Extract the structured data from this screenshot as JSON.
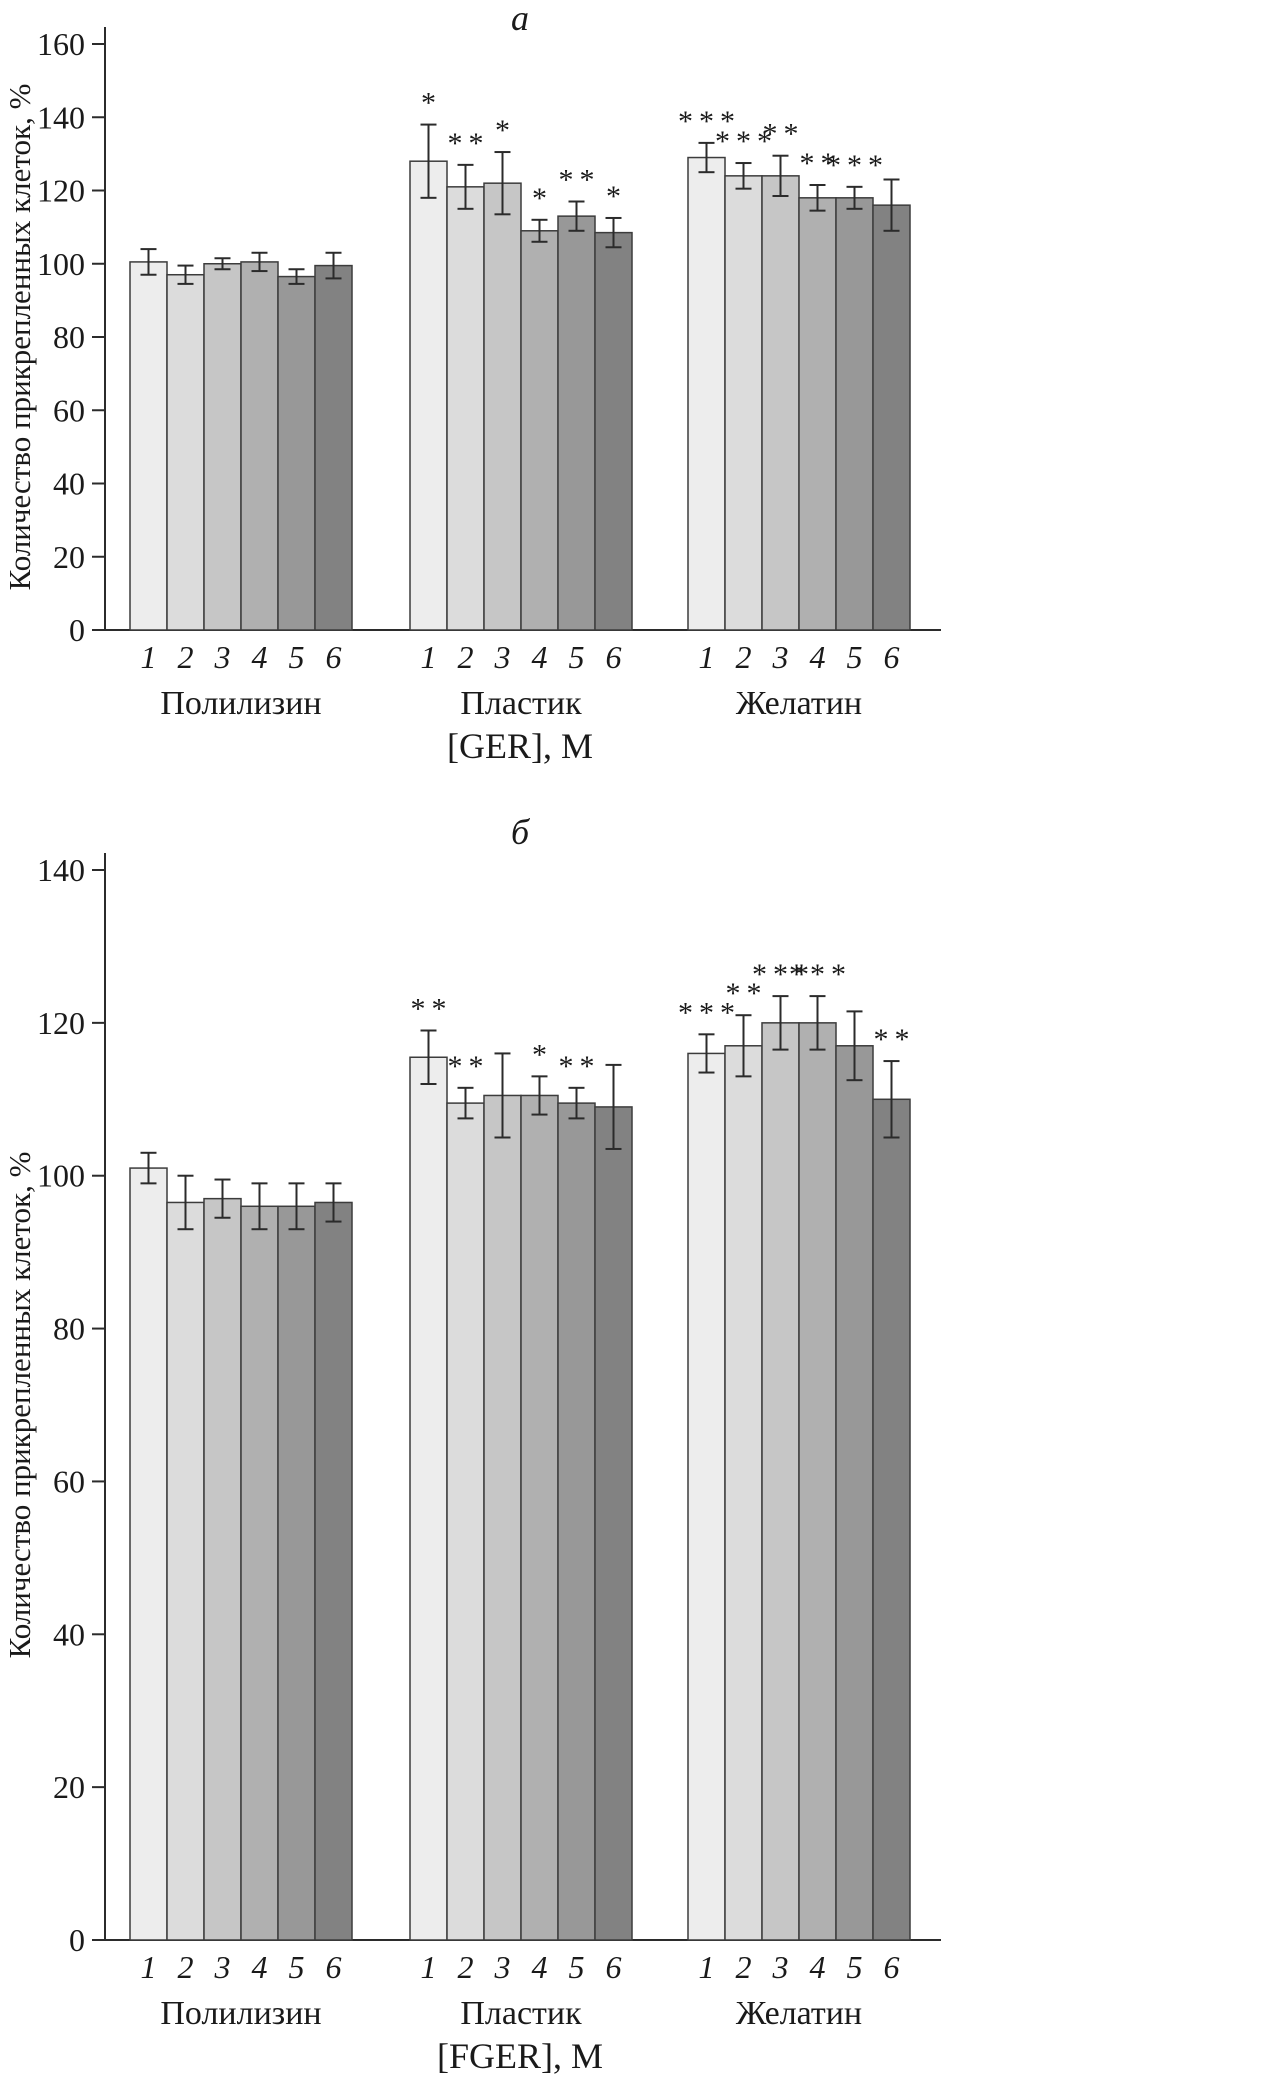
{
  "chart_data": [
    {
      "type": "bar",
      "panel": "a",
      "title": "а",
      "ylabel": "Количество прикрепленных клеток, %",
      "xlabel": "[GER], М",
      "ylim": [
        0,
        160
      ],
      "yticks": [
        0,
        20,
        40,
        60,
        80,
        100,
        120,
        140,
        160
      ],
      "bar_labels": [
        "1",
        "2",
        "3",
        "4",
        "5",
        "6"
      ],
      "bar_colors": [
        "#ededed",
        "#dcdcdc",
        "#c6c6c6",
        "#b0b0b0",
        "#989898",
        "#828282"
      ],
      "groups": [
        {
          "label": "Полилизин",
          "values": [
            100.5,
            97,
            100,
            100.5,
            96.5,
            99.5
          ],
          "errors": [
            3.5,
            2.5,
            1.5,
            2.5,
            2,
            3.5
          ],
          "stars": [
            "",
            "",
            "",
            "",
            "",
            ""
          ]
        },
        {
          "label": "Пластик",
          "values": [
            128,
            121,
            122,
            109,
            113,
            108.5
          ],
          "errors": [
            10,
            6,
            8.5,
            3,
            4,
            4
          ],
          "stars": [
            "*",
            "**",
            "*",
            "*",
            "**",
            "*"
          ]
        },
        {
          "label": "Желатин",
          "values": [
            129,
            124,
            124,
            118,
            118,
            116
          ],
          "errors": [
            4,
            3.5,
            5.5,
            3.5,
            3,
            7
          ],
          "stars": [
            "***",
            "***",
            "**",
            "**",
            "***",
            ""
          ]
        }
      ]
    },
    {
      "type": "bar",
      "panel": "b",
      "title": "б",
      "ylabel": "Количество прикрепленных клеток, %",
      "xlabel": "[FGER], М",
      "ylim": [
        0,
        140
      ],
      "yticks": [
        0,
        20,
        40,
        60,
        80,
        100,
        120,
        140
      ],
      "bar_labels": [
        "1",
        "2",
        "3",
        "4",
        "5",
        "6"
      ],
      "bar_colors": [
        "#ededed",
        "#dcdcdc",
        "#c6c6c6",
        "#b0b0b0",
        "#989898",
        "#828282"
      ],
      "groups": [
        {
          "label": "Полилизин",
          "values": [
            101,
            96.5,
            97,
            96,
            96,
            96.5
          ],
          "errors": [
            2,
            3.5,
            2.5,
            3,
            3,
            2.5
          ],
          "stars": [
            "",
            "",
            "",
            "",
            "",
            ""
          ]
        },
        {
          "label": "Пластик",
          "values": [
            115.5,
            109.5,
            110.5,
            110.5,
            109.5,
            109
          ],
          "errors": [
            3.5,
            2,
            5.5,
            2.5,
            2,
            5.5
          ],
          "stars": [
            "**",
            "**",
            "",
            "*",
            "**",
            ""
          ]
        },
        {
          "label": "Желатин",
          "values": [
            116,
            117,
            120,
            120,
            117,
            110
          ],
          "errors": [
            2.5,
            4,
            3.5,
            3.5,
            4.5,
            5
          ],
          "stars": [
            "***",
            "**",
            "***",
            "***",
            "",
            "**"
          ]
        }
      ]
    }
  ]
}
